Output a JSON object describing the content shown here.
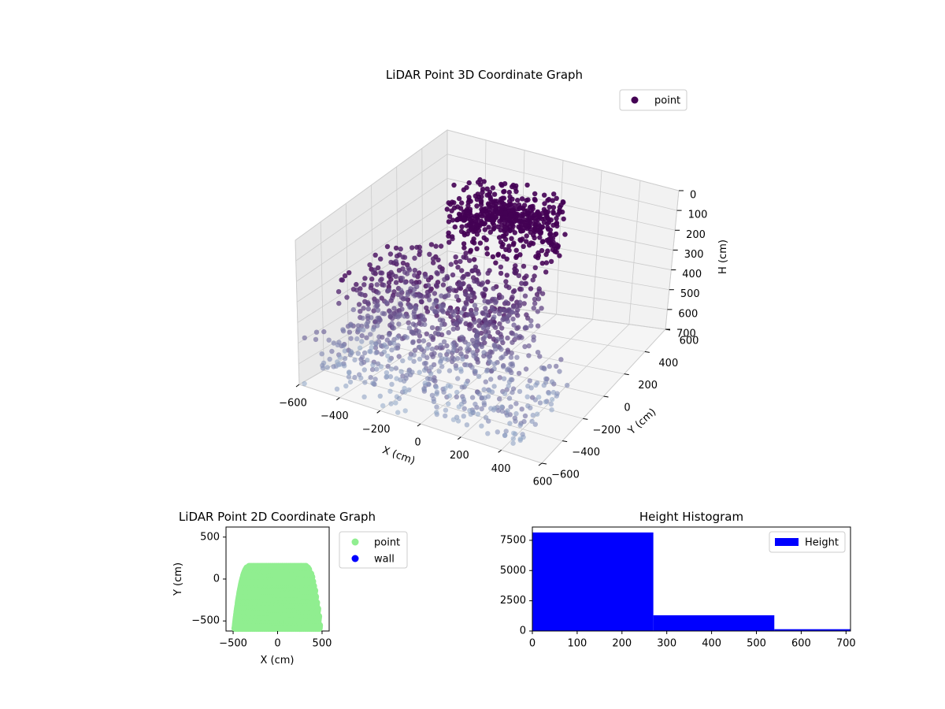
{
  "colors": {
    "point3d_dark": "#440154",
    "point3d_light": "#8fa8c8",
    "scatter2d_point": "#90ee90",
    "scatter2d_wall": "#0000ff",
    "hist_bar": "#0000ff",
    "pane_back": "#f2f2f2",
    "pane_side": "#e9e9e9",
    "grid": "#cccccc"
  },
  "chart_data": [
    {
      "type": "scatter",
      "projection": "3d",
      "title": "LiDAR Point 3D Coordinate Graph",
      "xlabel": "X (cm)",
      "ylabel": "Y (cm)",
      "zlabel": "H (cm)",
      "xlim": [
        -600,
        600
      ],
      "ylim": [
        -600,
        600
      ],
      "zlim": [
        0,
        700
      ],
      "z_inverted": true,
      "x_ticks": [
        "−600",
        "−400",
        "−200",
        "0",
        "200",
        "400",
        "600"
      ],
      "y_ticks": [
        "−600",
        "−400",
        "−200",
        "0",
        "200",
        "400",
        "600"
      ],
      "z_ticks": [
        "0",
        "100",
        "200",
        "300",
        "400",
        "500",
        "600",
        "700"
      ],
      "grid": true,
      "legend": {
        "position": "top-right",
        "entries": [
          {
            "name": "point",
            "color": "#440154"
          }
        ]
      },
      "series": [
        {
          "name": "point",
          "clusters": [
            {
              "shape": "dome",
              "x_range": [
                -250,
                350
              ],
              "y_range": [
                -100,
                250
              ],
              "h_range": [
                0,
                250
              ]
            },
            {
              "shape": "rings",
              "x_range": [
                -500,
                300
              ],
              "y_range": [
                -450,
                100
              ],
              "h_range": [
                250,
                500
              ]
            },
            {
              "shape": "floor",
              "x_range": [
                -600,
                500
              ],
              "y_range": [
                -600,
                -100
              ],
              "h_range": [
                500,
                700
              ]
            }
          ]
        }
      ]
    },
    {
      "type": "scatter",
      "title": "LiDAR Point 2D Coordinate Graph",
      "xlabel": "X (cm)",
      "ylabel": "Y (cm)",
      "xlim": [
        -580,
        580
      ],
      "ylim": [
        -620,
        620
      ],
      "x_ticks": [
        "−500",
        "0",
        "500"
      ],
      "y_ticks": [
        "−500",
        "0",
        "500"
      ],
      "legend": {
        "position": "outside-right",
        "entries": [
          {
            "name": "point",
            "color": "#90ee90"
          },
          {
            "name": "wall",
            "color": "#0000ff"
          }
        ]
      },
      "series": [
        {
          "name": "point",
          "region": {
            "y_top": 150,
            "y_bottom": -600,
            "x_half_width_top": 320,
            "x_half_width_bottom": 480
          }
        },
        {
          "name": "wall",
          "points": []
        }
      ]
    },
    {
      "type": "bar",
      "subtype": "histogram",
      "title": "Height Histogram",
      "xlabel": "",
      "ylabel": "",
      "bins": [
        {
          "start": 0,
          "end": 270,
          "count": 8150
        },
        {
          "start": 270,
          "end": 540,
          "count": 1300
        },
        {
          "start": 540,
          "end": 710,
          "count": 150
        }
      ],
      "xlim": [
        0,
        710
      ],
      "ylim": [
        0,
        8600
      ],
      "x_ticks": [
        "0",
        "100",
        "200",
        "300",
        "400",
        "500",
        "600",
        "700"
      ],
      "y_ticks": [
        "0",
        "2500",
        "5000",
        "7500"
      ],
      "legend": {
        "position": "top-right",
        "entries": [
          {
            "name": "Height",
            "color": "#0000ff"
          }
        ]
      }
    }
  ]
}
